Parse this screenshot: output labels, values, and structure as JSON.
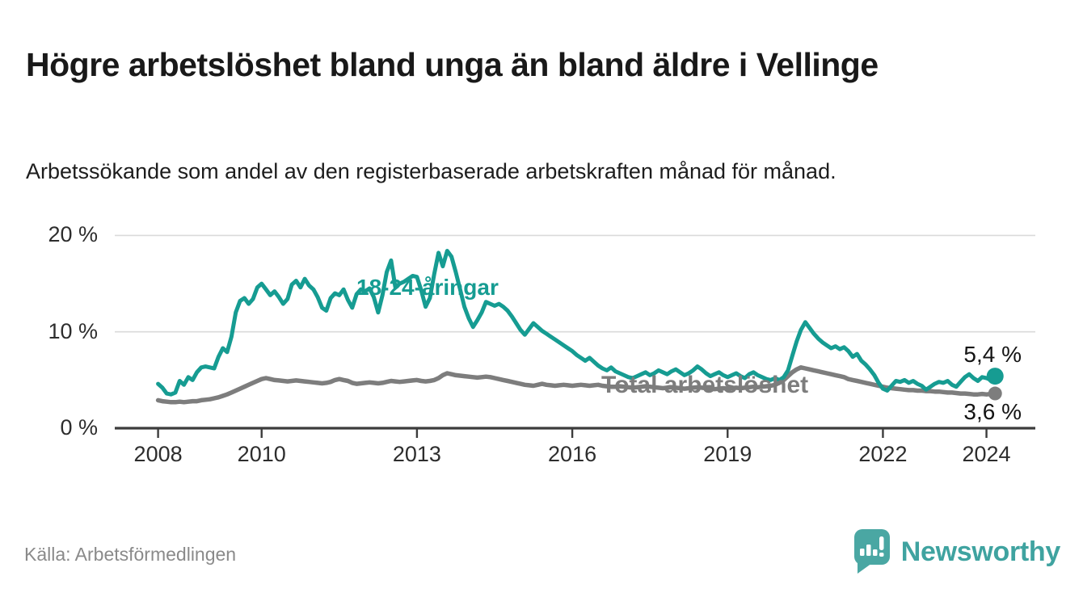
{
  "header": {
    "title": "Högre arbetslöshet bland unga än bland äldre i Vellinge",
    "subtitle": "Arbetssökande som andel av den registerbaserade arbetskraften månad för månad."
  },
  "footer": {
    "source": "Källa: Arbetsförmedlingen",
    "brand": "Newsworthy"
  },
  "colors": {
    "accent_teal": "#169c92",
    "line_gray": "#7d7d7d",
    "grid": "#dadada",
    "axis": "#3c3c3c",
    "logo_teal": "#4aa7a3",
    "logo_text": "#3fa3a0"
  },
  "chart_data": {
    "type": "line",
    "unit": "%",
    "x_start": "2008-01",
    "x_interval": "month",
    "ylim": [
      0,
      21
    ],
    "grid": "horizontal",
    "y_ticks": [
      {
        "value": 0,
        "label": "0 %"
      },
      {
        "value": 10,
        "label": "10 %"
      },
      {
        "value": 20,
        "label": "20 %"
      }
    ],
    "x_ticks": [
      {
        "year": 2008,
        "label": "2008"
      },
      {
        "year": 2010,
        "label": "2010"
      },
      {
        "year": 2013,
        "label": "2013"
      },
      {
        "year": 2016,
        "label": "2016"
      },
      {
        "year": 2019,
        "label": "2019"
      },
      {
        "year": 2022,
        "label": "2022"
      },
      {
        "year": 2024,
        "label": "2024"
      }
    ],
    "series": [
      {
        "name": "18-24-åringar",
        "color": "#169c92",
        "end_label": "5,4 %",
        "end_value": 5.4,
        "line_width": 5,
        "values": [
          4.6,
          4.2,
          3.6,
          3.5,
          3.7,
          4.9,
          4.5,
          5.3,
          5.0,
          5.8,
          6.3,
          6.4,
          6.3,
          6.2,
          7.4,
          8.3,
          7.9,
          9.5,
          12.0,
          13.2,
          13.5,
          12.9,
          13.4,
          14.6,
          15.0,
          14.4,
          13.8,
          14.2,
          13.6,
          12.9,
          13.4,
          14.9,
          15.3,
          14.6,
          15.5,
          14.8,
          14.4,
          13.6,
          12.5,
          12.2,
          13.5,
          14.0,
          13.8,
          14.4,
          13.3,
          12.5,
          13.9,
          14.4,
          14.2,
          14.5,
          13.6,
          12.0,
          13.8,
          16.2,
          17.4,
          14.6,
          15.0,
          15.2,
          15.5,
          15.8,
          15.7,
          14.3,
          12.6,
          13.5,
          16.0,
          18.2,
          16.8,
          18.4,
          17.8,
          16.2,
          14.4,
          12.6,
          11.4,
          10.5,
          11.2,
          12.0,
          13.1,
          12.9,
          12.7,
          12.9,
          12.6,
          12.2,
          11.6,
          10.9,
          10.2,
          9.7,
          10.3,
          10.9,
          10.5,
          10.1,
          9.8,
          9.5,
          9.2,
          8.9,
          8.6,
          8.3,
          8.0,
          7.6,
          7.3,
          7.0,
          7.3,
          6.9,
          6.5,
          6.2,
          6.0,
          6.3,
          5.9,
          5.7,
          5.5,
          5.3,
          5.2,
          5.4,
          5.6,
          5.8,
          5.5,
          5.7,
          6.0,
          5.8,
          5.6,
          5.9,
          6.1,
          5.8,
          5.5,
          5.7,
          6.0,
          6.4,
          6.1,
          5.7,
          5.4,
          5.6,
          5.8,
          5.5,
          5.3,
          5.5,
          5.7,
          5.4,
          5.2,
          5.6,
          5.8,
          5.5,
          5.3,
          5.1,
          5.0,
          5.2,
          5.0,
          5.3,
          6.0,
          7.5,
          9.0,
          10.2,
          11.0,
          10.4,
          9.8,
          9.3,
          8.9,
          8.6,
          8.3,
          8.5,
          8.2,
          8.4,
          8.0,
          7.4,
          7.7,
          7.0,
          6.6,
          6.1,
          5.5,
          4.7,
          4.1,
          3.9,
          4.4,
          4.9,
          4.8,
          5.0,
          4.7,
          4.9,
          4.6,
          4.4,
          4.0,
          4.3,
          4.6,
          4.8,
          4.7,
          4.9,
          4.5,
          4.3,
          4.8,
          5.3,
          5.6,
          5.2,
          4.9,
          5.3,
          5.2,
          5.0,
          5.4
        ]
      },
      {
        "name": "Total arbetslöshet",
        "color": "#7d7d7d",
        "end_label": "3,6 %",
        "end_value": 3.6,
        "line_width": 5.5,
        "values": [
          2.9,
          2.8,
          2.75,
          2.7,
          2.7,
          2.75,
          2.7,
          2.75,
          2.8,
          2.8,
          2.9,
          2.95,
          3.0,
          3.1,
          3.2,
          3.35,
          3.5,
          3.7,
          3.9,
          4.1,
          4.3,
          4.5,
          4.7,
          4.9,
          5.1,
          5.2,
          5.1,
          5.0,
          4.95,
          4.9,
          4.85,
          4.9,
          4.95,
          4.9,
          4.85,
          4.8,
          4.75,
          4.7,
          4.65,
          4.7,
          4.8,
          5.0,
          5.1,
          5.0,
          4.9,
          4.7,
          4.6,
          4.65,
          4.7,
          4.75,
          4.7,
          4.65,
          4.7,
          4.8,
          4.9,
          4.85,
          4.8,
          4.85,
          4.9,
          4.95,
          5.0,
          4.9,
          4.85,
          4.9,
          5.0,
          5.2,
          5.5,
          5.7,
          5.6,
          5.5,
          5.45,
          5.4,
          5.35,
          5.3,
          5.25,
          5.3,
          5.35,
          5.3,
          5.2,
          5.1,
          5.0,
          4.9,
          4.8,
          4.7,
          4.6,
          4.5,
          4.45,
          4.4,
          4.5,
          4.6,
          4.5,
          4.45,
          4.4,
          4.45,
          4.5,
          4.45,
          4.4,
          4.45,
          4.5,
          4.45,
          4.4,
          4.45,
          4.5,
          4.4,
          4.35,
          4.3,
          4.3,
          4.35,
          4.3,
          4.25,
          4.2,
          4.25,
          4.3,
          4.35,
          4.3,
          4.25,
          4.2,
          4.15,
          4.2,
          4.25,
          4.2,
          4.15,
          4.1,
          4.15,
          4.2,
          4.25,
          4.2,
          4.15,
          4.1,
          4.05,
          4.1,
          4.15,
          4.1,
          4.15,
          4.2,
          4.15,
          4.2,
          4.25,
          4.3,
          4.25,
          4.3,
          4.35,
          4.4,
          4.5,
          4.7,
          5.0,
          5.4,
          5.8,
          6.1,
          6.3,
          6.2,
          6.1,
          6.0,
          5.9,
          5.8,
          5.7,
          5.6,
          5.5,
          5.4,
          5.3,
          5.1,
          5.0,
          4.9,
          4.8,
          4.7,
          4.6,
          4.5,
          4.4,
          4.3,
          4.2,
          4.15,
          4.1,
          4.05,
          4.0,
          3.95,
          3.95,
          3.9,
          3.9,
          3.85,
          3.85,
          3.8,
          3.8,
          3.75,
          3.7,
          3.7,
          3.65,
          3.6,
          3.6,
          3.55,
          3.5,
          3.5,
          3.55,
          3.5,
          3.55,
          3.6
        ]
      }
    ]
  }
}
